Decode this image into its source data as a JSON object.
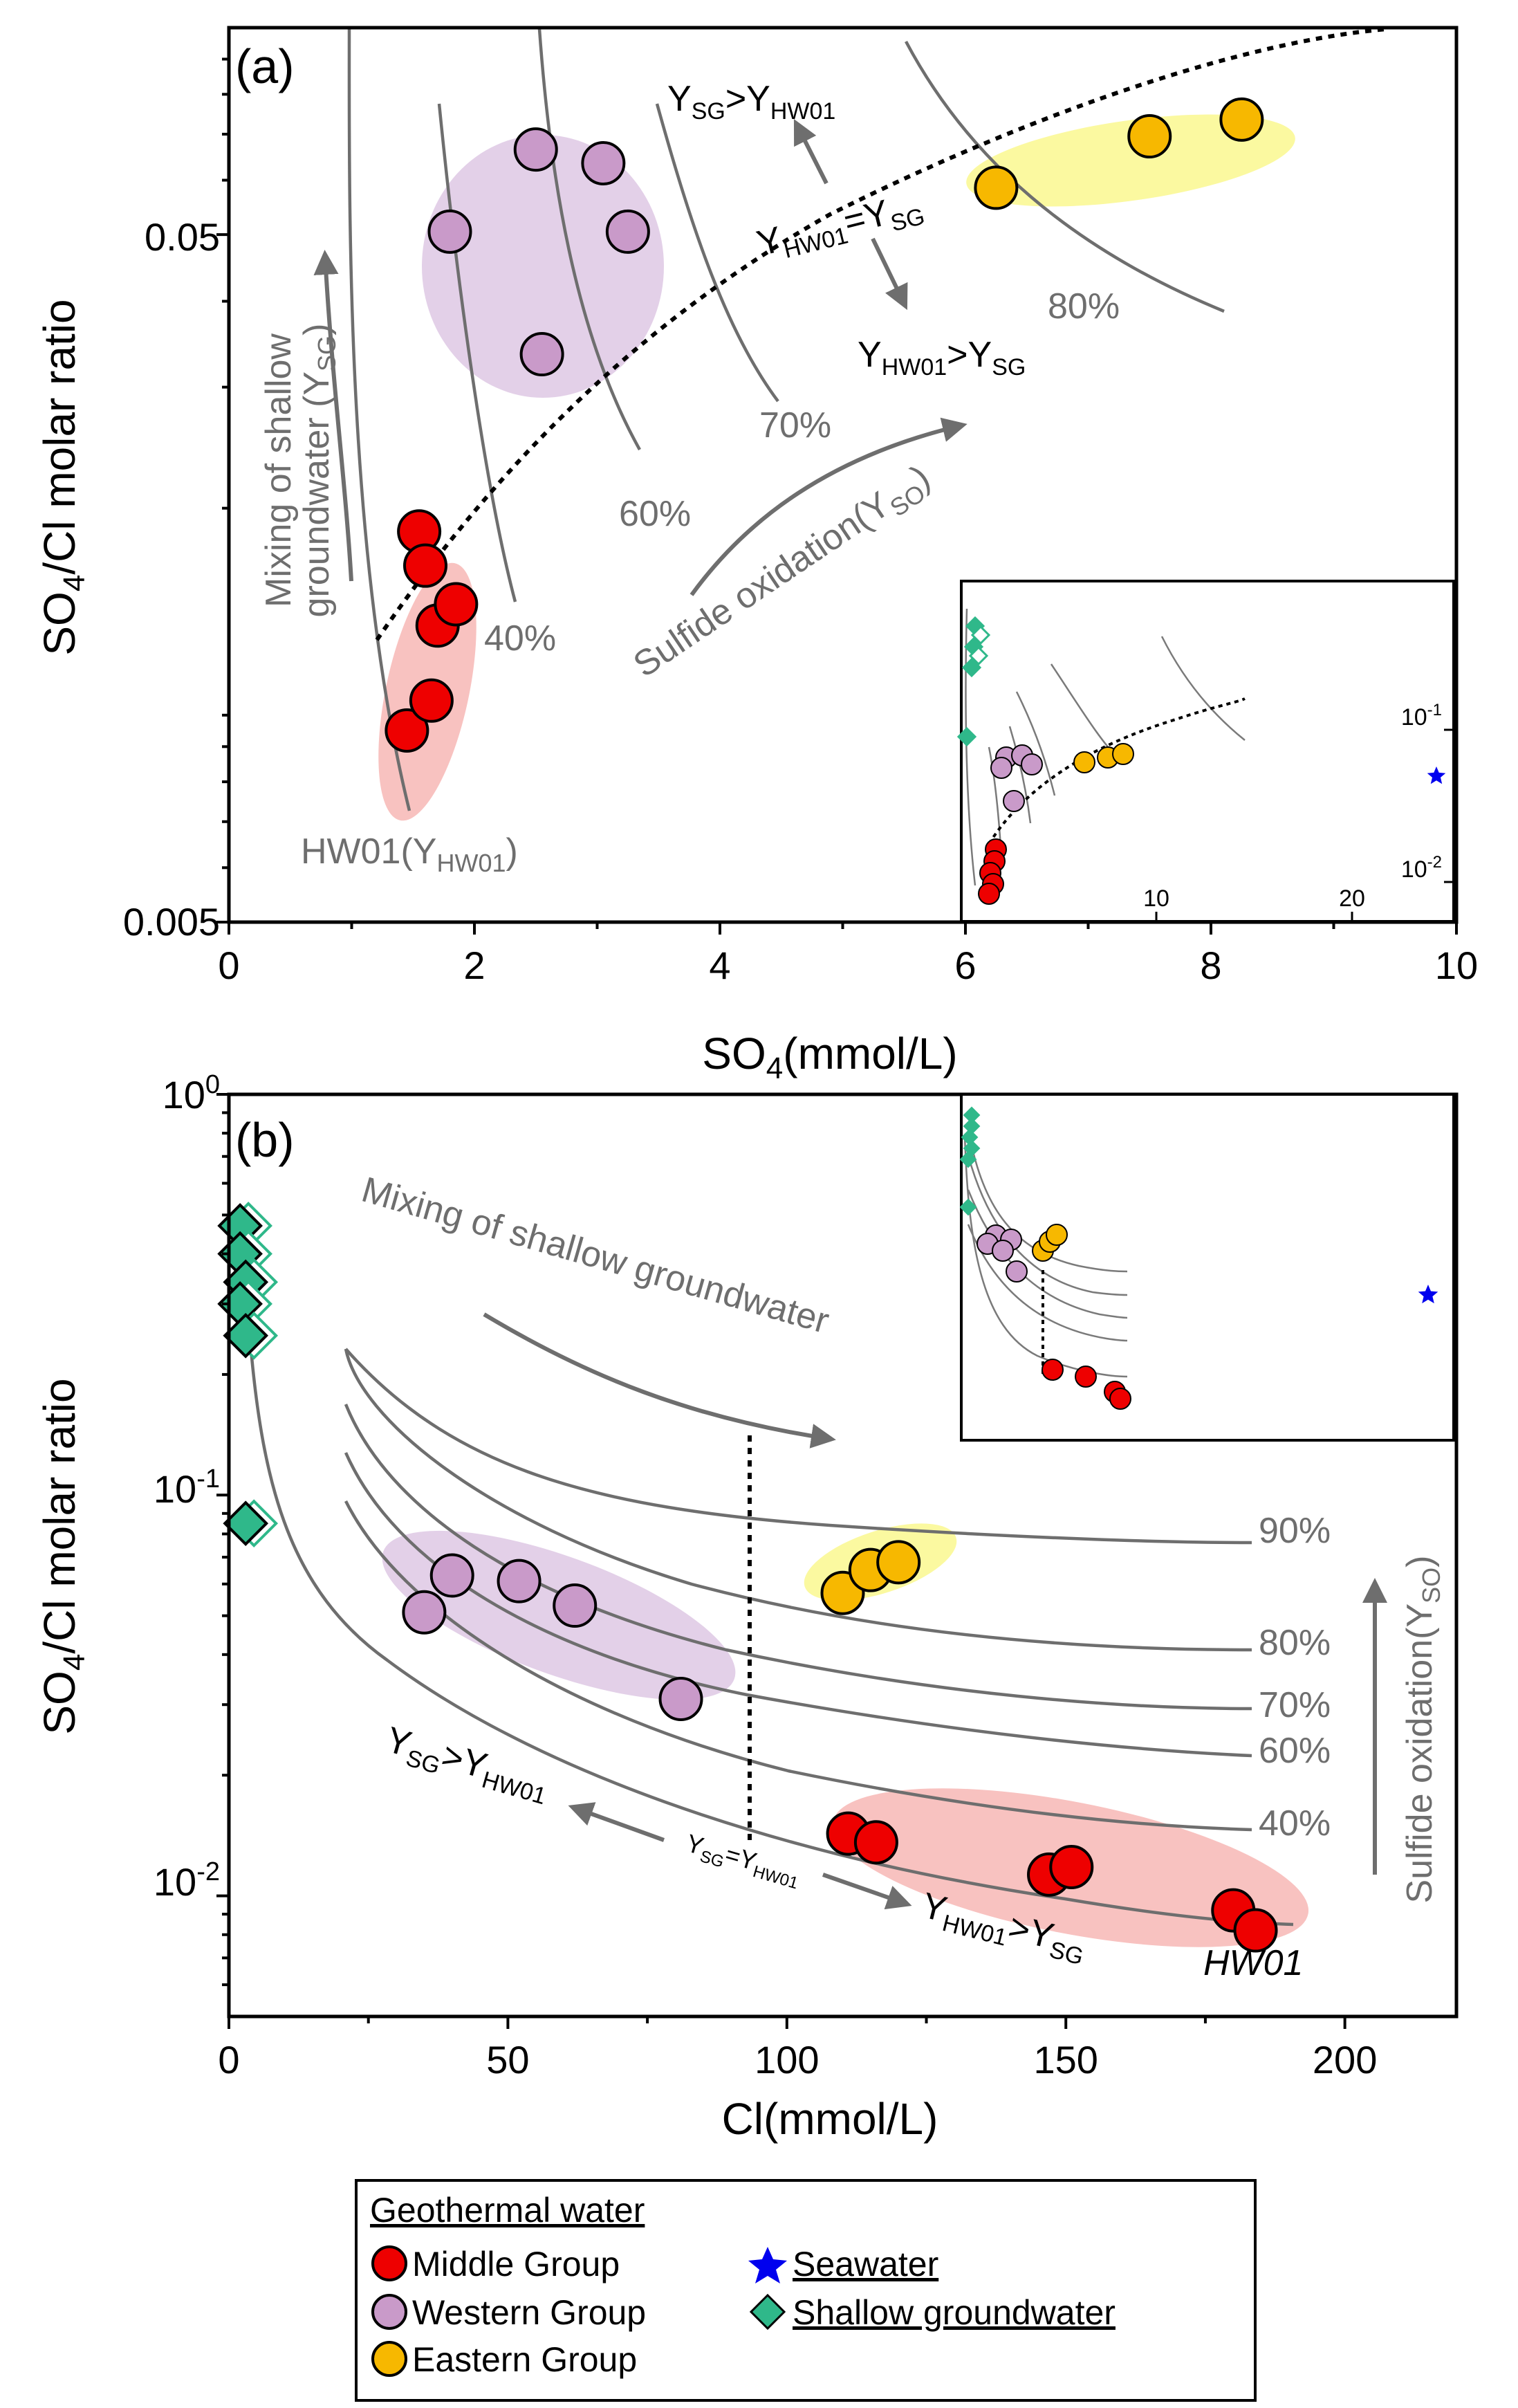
{
  "colors": {
    "middle": "#ee0000",
    "western": "#c99ac9",
    "eastern": "#f7b800",
    "seawater": "#0000ee",
    "shallow": "#2fb88a",
    "curve": "#6e6e6e",
    "ellipse_middle": "#f8c2c0",
    "ellipse_western": "#e3d0e8",
    "ellipse_eastern": "#fbf9a0"
  },
  "panel_a": {
    "label": "(a)",
    "xlabel": "SO4(mmol/L)",
    "xlabel_main": "SO",
    "xlabel_sub": "4",
    "xlabel_tail": "(mmol/L)",
    "ylabel_main": "SO",
    "ylabel_sub": "4",
    "ylabel_tail": "/Cl molar ratio",
    "x_ticks": [
      "0",
      "2",
      "4",
      "6",
      "8",
      "10"
    ],
    "y_ticks": [
      "0.05",
      "0.005"
    ],
    "curve_labels": [
      "40%",
      "60%",
      "70%",
      "80%"
    ],
    "hw01_label": "HW01(Y",
    "hw01_sub": "HW01",
    "hw01_close": ")",
    "mixing_label_1": "Mixing of shallow",
    "mixing_label_2": "groundwater (Y",
    "mixing_label_2_sub": "SG",
    "mixing_label_2_close": ")",
    "sulfide_label": "Sulfide oxidation(Y",
    "sulfide_sub": "SO",
    "sulfide_close": ")",
    "eq_sg_gt": "Y",
    "inset": {
      "x_ticks": [
        "10",
        "20"
      ],
      "y_tick_1": "10",
      "y_tick_1_exp": "-1",
      "y_tick_2": "10",
      "y_tick_2_exp": "-2"
    }
  },
  "panel_b": {
    "label": "(b)",
    "xlabel": "Cl(mmol/L)",
    "ylabel_main": "SO",
    "ylabel_sub": "4",
    "ylabel_tail": "/Cl molar ratio",
    "x_ticks": [
      "0",
      "50",
      "100",
      "150",
      "200"
    ],
    "y_tick_top": "10",
    "y_tick_top_exp": "0",
    "y_tick_mid": "10",
    "y_tick_mid_exp": "-1",
    "y_tick_bot": "10",
    "y_tick_bot_exp": "-2",
    "curve_labels": [
      "90%",
      "80%",
      "70%",
      "60%",
      "40%"
    ],
    "mixing_label": "Mixing of shallow groundwater",
    "sulfide_label": "Sulfide oxidation(Y",
    "sulfide_sub": "SO",
    "sulfide_close": ")",
    "hw01_label": "HW01"
  },
  "legend": {
    "title": "Geothermal water",
    "middle": "Middle Group",
    "western": "Western Group",
    "eastern": "Eastern Group",
    "seawater": "Seawater",
    "shallow": "Shallow groundwater"
  },
  "chart_data": [
    {
      "type": "scatter",
      "title": "(a)",
      "xlabel": "SO4(mmol/L)",
      "ylabel": "SO4/Cl molar ratio",
      "x_scale": "linear",
      "y_scale": "log",
      "xlim": [
        0,
        10
      ],
      "ylim": [
        0.005,
        0.1
      ],
      "series": [
        {
          "name": "Middle Group",
          "points": [
            [
              1.45,
              0.0095
            ],
            [
              1.55,
              0.0185
            ],
            [
              1.6,
              0.0165
            ],
            [
              1.7,
              0.0135
            ],
            [
              1.65,
              0.0105
            ],
            [
              1.85,
              0.0145
            ]
          ]
        },
        {
          "name": "Western Group",
          "points": [
            [
              1.8,
              0.0505
            ],
            [
              2.5,
              0.0665
            ],
            [
              2.55,
              0.0335
            ],
            [
              3.05,
              0.0635
            ],
            [
              3.25,
              0.0505
            ]
          ]
        },
        {
          "name": "Eastern Group",
          "points": [
            [
              6.25,
              0.0585
            ],
            [
              7.5,
              0.0695
            ],
            [
              8.25,
              0.0735
            ]
          ]
        }
      ],
      "mixing_lines": [
        "40%",
        "60%",
        "70%",
        "80%"
      ],
      "annotations": [
        "HW01(YHW01)",
        "Mixing of shallow groundwater (YSG)",
        "Sulfide oxidation(YSO)",
        "YSG>YHW01",
        "YHW01=YSG",
        "YHW01>YSG"
      ],
      "inset": {
        "x_ticks": [
          10,
          20
        ],
        "y_ticks": [
          "10^-1",
          "10^-2"
        ],
        "series": [
          {
            "name": "Shallow groundwater",
            "count": 5
          },
          {
            "name": "Seawater",
            "count": 1
          }
        ]
      }
    },
    {
      "type": "scatter",
      "title": "(b)",
      "xlabel": "Cl(mmol/L)",
      "ylabel": "SO4/Cl molar ratio",
      "x_scale": "linear",
      "y_scale": "log",
      "xlim": [
        0,
        220
      ],
      "ylim": [
        0.005,
        1
      ],
      "series": [
        {
          "name": "Middle Group",
          "points": [
            [
              111,
              0.0143
            ],
            [
              116,
              0.0136
            ],
            [
              147,
              0.0113
            ],
            [
              151,
              0.0118
            ],
            [
              180,
              0.0092
            ],
            [
              184,
              0.0082
            ]
          ]
        },
        {
          "name": "Western Group",
          "points": [
            [
              35,
              0.051
            ],
            [
              40,
              0.063
            ],
            [
              52,
              0.061
            ],
            [
              62,
              0.053
            ],
            [
              81,
              0.031
            ]
          ]
        },
        {
          "name": "Eastern Group",
          "points": [
            [
              110,
              0.057
            ],
            [
              115,
              0.065
            ],
            [
              120,
              0.068
            ]
          ]
        },
        {
          "name": "Shallow groundwater",
          "points": [
            [
              2,
              0.47
            ],
            [
              2,
              0.4
            ],
            [
              3,
              0.34
            ],
            [
              2,
              0.3
            ],
            [
              3,
              0.25
            ],
            [
              3,
              0.085
            ]
          ]
        }
      ],
      "mixing_lines": [
        "90%",
        "80%",
        "70%",
        "60%",
        "40%"
      ],
      "annotations": [
        "Mixing of shallow groundwater",
        "Sulfide oxidation(YSO)",
        "YSG>YHW01",
        "YSG=YHW01",
        "YHW01>YSG",
        "HW01"
      ]
    }
  ]
}
